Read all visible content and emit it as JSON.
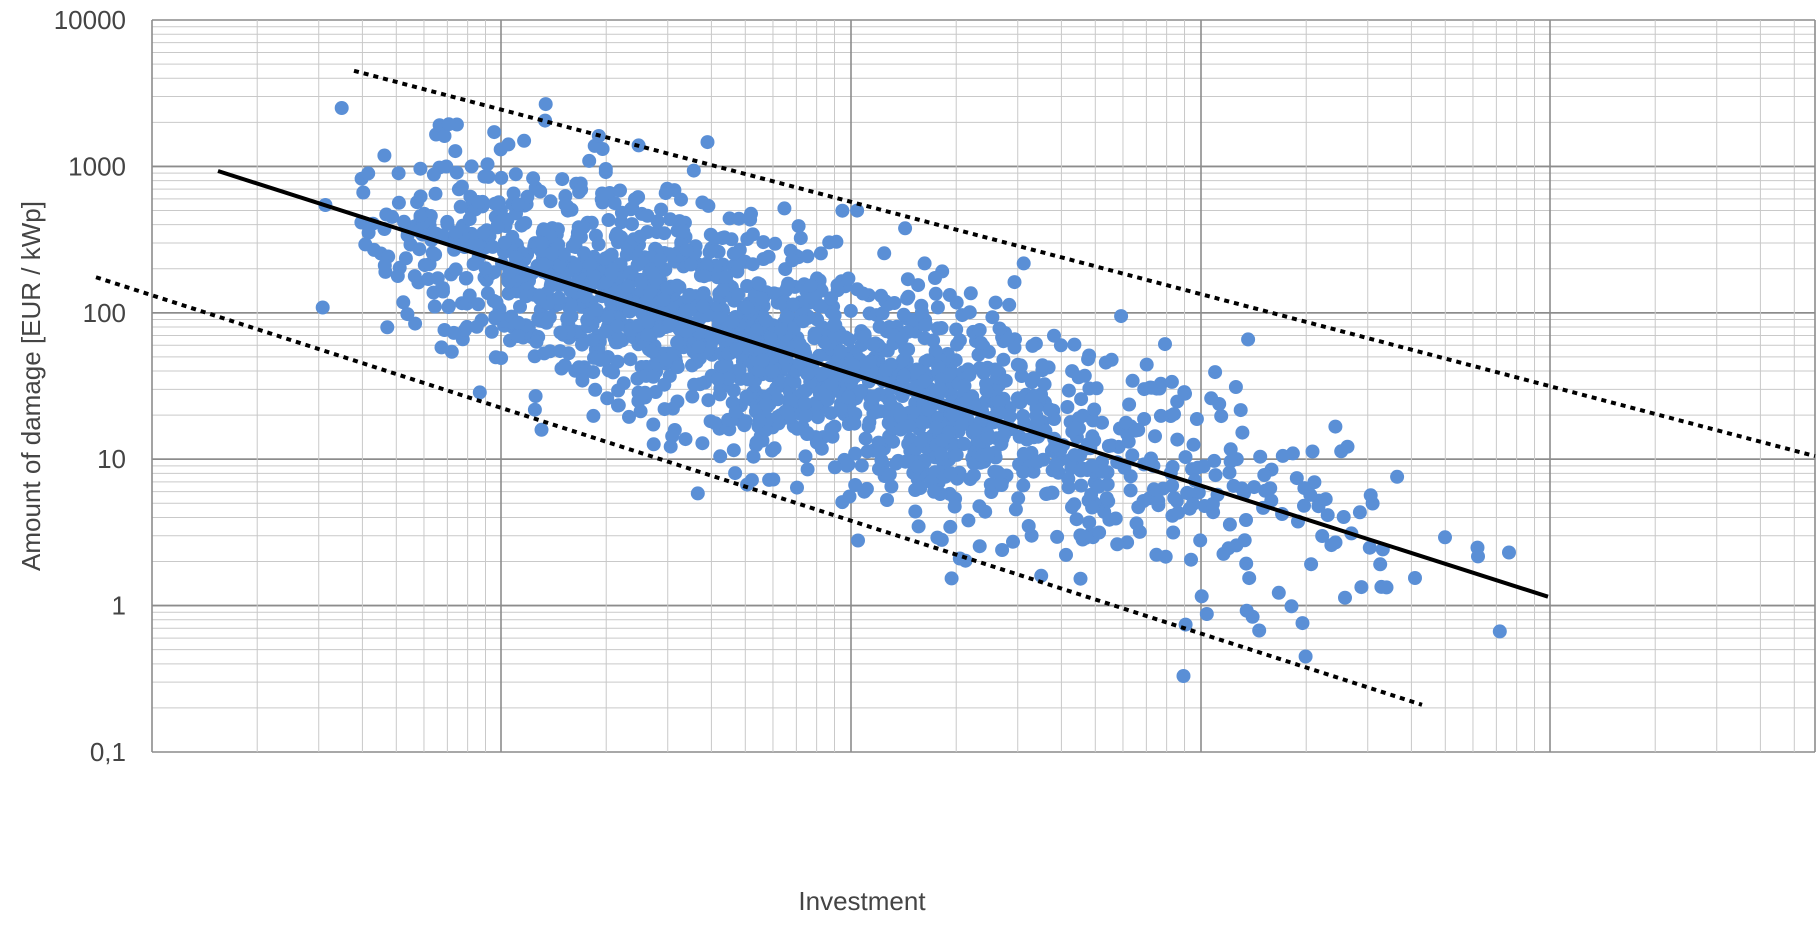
{
  "chart_data": {
    "type": "scatter",
    "xlabel": "Investment",
    "ylabel": "Amount of damage [EUR / kWp]",
    "y_scale": "log",
    "x_scale": "log",
    "ylim": [
      0.1,
      10000
    ],
    "y_ticks": [
      {
        "value": 10000,
        "label": "10000"
      },
      {
        "value": 1000,
        "label": "1000"
      },
      {
        "value": 100,
        "label": "100"
      },
      {
        "value": 10,
        "label": "10"
      },
      {
        "value": 1,
        "label": "1"
      },
      {
        "value": 0.1,
        "label": "0,1"
      }
    ],
    "x_tick_labels_shown": false,
    "grid": true,
    "legend": "none",
    "point_color": "#5a8fd6",
    "line_color": "#000000",
    "trend_line": {
      "start_y": 930,
      "end_y": 1.15,
      "style": "solid"
    },
    "upper_bound": {
      "start_y": 4500,
      "end_y": 10.5,
      "style": "dotted"
    },
    "lower_bound": {
      "start_y": 175,
      "end_y": 0.21,
      "style": "dotted"
    },
    "point_count": 2000,
    "sample_points_note": ""
  }
}
